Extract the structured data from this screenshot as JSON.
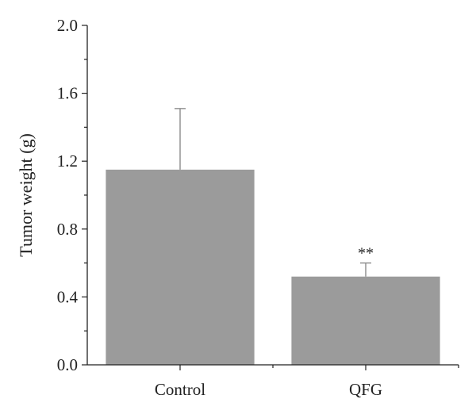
{
  "chart_data": {
    "type": "bar",
    "categories": [
      "Control",
      "QFG"
    ],
    "values": [
      1.15,
      0.52
    ],
    "error": [
      0.36,
      0.08
    ],
    "annotations": [
      "",
      "**"
    ],
    "ylabel": "Tumor weight (g)",
    "xlabel": "",
    "ylim": [
      0,
      2.0
    ],
    "yticks": [
      "0.0",
      "0.4",
      "0.8",
      "1.2",
      "1.6",
      "2.0"
    ],
    "grid": false,
    "bar_color": "#9b9b9b"
  }
}
